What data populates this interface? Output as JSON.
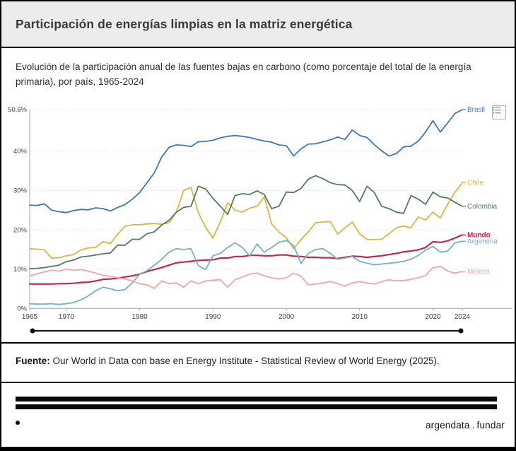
{
  "header": {
    "title": "Participación de energías limpias en la matriz energética"
  },
  "subtitle": "Evolución de la participación anual de las fuentes bajas en carbono (como porcentaje del total de la energía primaria), por país, 1965-2024",
  "source": {
    "label": "Fuente:",
    "text": " Our World in Data con base en Energy Institute - Statistical Review of World Energy (2025)."
  },
  "footer": {
    "brand_left": "argendata",
    "brand_sep": ".",
    "brand_right": "fundar"
  },
  "icons": {
    "top_right": "data-list-icon"
  },
  "colors": {
    "header_bg": "#ececec",
    "border": "#000000",
    "gridline": "#d2e0ee",
    "axis": "#a6a6a6",
    "slider": "#111111"
  },
  "chart_data": {
    "type": "line",
    "title": "",
    "xlabel": "",
    "ylabel": "",
    "y_range": [
      0,
      50.6
    ],
    "grid": "dotted-horizontal",
    "legend_position": "right-end-of-line",
    "x": [
      1965,
      1966,
      1967,
      1968,
      1969,
      1970,
      1971,
      1972,
      1973,
      1974,
      1975,
      1976,
      1977,
      1978,
      1979,
      1980,
      1981,
      1982,
      1983,
      1984,
      1985,
      1986,
      1987,
      1988,
      1989,
      1990,
      1991,
      1992,
      1993,
      1994,
      1995,
      1996,
      1997,
      1998,
      1999,
      2000,
      2001,
      2002,
      2003,
      2004,
      2005,
      2006,
      2007,
      2008,
      2009,
      2010,
      2011,
      2012,
      2013,
      2014,
      2015,
      2016,
      2017,
      2018,
      2019,
      2020,
      2021,
      2022,
      2023,
      2024
    ],
    "x_ticks": [
      1965,
      1970,
      1980,
      1990,
      2000,
      2010,
      2020,
      2024
    ],
    "y_ticks": [
      {
        "value": 0,
        "label": "0%"
      },
      {
        "value": 10,
        "label": "10%"
      },
      {
        "value": 20,
        "label": "20%"
      },
      {
        "value": 30,
        "label": "30%"
      },
      {
        "value": 40,
        "label": "40%"
      },
      {
        "value": 50.6,
        "label": "50,6%"
      }
    ],
    "series": [
      {
        "name": "Brasil",
        "color": "#3d76bd",
        "bold": false,
        "values": [
          26.3,
          26.2,
          26.6,
          25.0,
          24.6,
          24.4,
          24.9,
          25.2,
          25.1,
          25.6,
          25.4,
          24.8,
          25.7,
          26.4,
          27.8,
          29.5,
          32.0,
          34.5,
          38.5,
          41.0,
          41.6,
          41.5,
          41.2,
          42.4,
          42.5,
          42.8,
          43.4,
          43.8,
          44.0,
          43.8,
          43.5,
          43.0,
          42.6,
          42.3,
          41.6,
          41.4,
          38.8,
          40.6,
          41.8,
          41.9,
          42.4,
          42.9,
          43.6,
          43.0,
          45.4,
          44.0,
          43.5,
          41.7,
          40.1,
          38.8,
          39.4,
          41.1,
          41.3,
          42.6,
          44.9,
          47.8,
          44.9,
          47.2,
          49.6,
          50.6
        ]
      },
      {
        "name": "Chile",
        "color": "#ddb543",
        "bold": false,
        "values": [
          15.2,
          15.1,
          14.9,
          12.8,
          12.9,
          13.4,
          13.7,
          14.9,
          15.4,
          15.5,
          17.0,
          16.5,
          18.9,
          20.9,
          21.3,
          21.3,
          21.5,
          21.6,
          21.4,
          21.8,
          24.5,
          30.0,
          30.8,
          24.4,
          20.6,
          17.9,
          22.0,
          26.9,
          25.0,
          24.5,
          25.5,
          26.0,
          28.4,
          21.5,
          19.4,
          18.0,
          15.2,
          17.5,
          19.5,
          21.8,
          22.0,
          22.1,
          18.9,
          20.5,
          22.0,
          19.0,
          17.6,
          17.5,
          17.6,
          19.0,
          20.5,
          21.0,
          20.5,
          23.3,
          22.5,
          24.5,
          23.0,
          26.5,
          29.5,
          32.0
        ]
      },
      {
        "name": "Colombia",
        "color": "#527c5d",
        "bold": false,
        "values": [
          10.1,
          10.2,
          10.4,
          10.7,
          11.0,
          11.9,
          12.3,
          13.1,
          13.3,
          13.6,
          13.9,
          14.1,
          16.1,
          16.1,
          17.6,
          17.6,
          19.0,
          19.5,
          21.2,
          22.4,
          24.5,
          25.7,
          26.0,
          31.1,
          30.4,
          28.0,
          26.0,
          23.9,
          28.7,
          29.2,
          29.0,
          29.9,
          29.0,
          25.4,
          26.0,
          29.6,
          29.5,
          30.5,
          32.9,
          33.8,
          33.0,
          32.0,
          31.5,
          31.4,
          30.0,
          27.2,
          31.1,
          29.5,
          26.0,
          25.4,
          24.5,
          24.2,
          28.7,
          27.8,
          26.5,
          29.6,
          28.4,
          28.1,
          27.0,
          26.0
        ]
      },
      {
        "name": "Mundo",
        "color": "#c1294e",
        "bold": true,
        "values": [
          6.2,
          6.2,
          6.2,
          6.2,
          6.3,
          6.3,
          6.4,
          6.6,
          6.7,
          7.0,
          7.4,
          7.5,
          7.7,
          8.0,
          8.3,
          8.7,
          9.4,
          9.9,
          10.4,
          11.0,
          11.6,
          11.8,
          12.0,
          12.2,
          12.3,
          12.4,
          12.8,
          12.8,
          13.2,
          13.2,
          13.5,
          13.5,
          13.4,
          13.4,
          13.6,
          13.6,
          13.3,
          13.2,
          13.0,
          13.0,
          12.9,
          12.9,
          12.7,
          13.0,
          13.3,
          13.2,
          13.0,
          13.2,
          13.4,
          13.7,
          14.0,
          14.4,
          14.6,
          14.9,
          15.5,
          17.0,
          16.8,
          17.2,
          17.9,
          18.7
        ]
      },
      {
        "name": "Argentina",
        "color": "#6fb2cc",
        "bold": false,
        "values": [
          1.2,
          1.1,
          1.1,
          1.2,
          1.0,
          1.2,
          1.5,
          2.2,
          3.2,
          4.5,
          5.4,
          5.0,
          4.5,
          4.8,
          6.5,
          8.7,
          9.6,
          11.0,
          12.5,
          14.3,
          15.2,
          15.0,
          15.2,
          10.9,
          9.9,
          13.4,
          14.0,
          15.5,
          16.7,
          15.5,
          13.4,
          16.4,
          14.3,
          15.5,
          16.8,
          17.3,
          16.0,
          11.5,
          14.0,
          15.0,
          15.2,
          14.0,
          12.5,
          12.8,
          13.2,
          12.0,
          11.5,
          11.1,
          11.3,
          11.5,
          11.7,
          12.0,
          12.5,
          13.5,
          14.8,
          15.8,
          14.3,
          14.6,
          16.7,
          17.1
        ]
      },
      {
        "name": "México",
        "color": "#f3a5a5",
        "bold": false,
        "values": [
          8.3,
          8.8,
          9.3,
          9.7,
          9.5,
          10.0,
          9.7,
          9.9,
          9.5,
          9.0,
          8.4,
          8.2,
          7.8,
          7.5,
          7.0,
          6.3,
          6.0,
          5.1,
          7.0,
          6.3,
          6.5,
          5.4,
          7.0,
          6.3,
          7.0,
          7.2,
          7.3,
          5.4,
          7.3,
          8.0,
          8.7,
          9.0,
          8.3,
          7.8,
          7.5,
          7.8,
          9.0,
          8.2,
          6.0,
          6.2,
          6.5,
          6.8,
          6.3,
          5.7,
          6.5,
          6.8,
          6.5,
          6.2,
          6.8,
          7.3,
          7.0,
          7.1,
          7.4,
          7.8,
          8.4,
          10.4,
          10.7,
          9.5,
          9.0,
          9.4
        ]
      }
    ],
    "timeline": {
      "start": 1965,
      "end": 2024
    }
  }
}
